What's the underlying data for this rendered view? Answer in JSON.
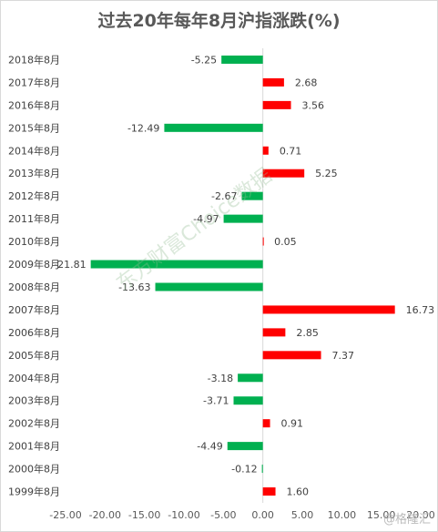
{
  "chart_data": {
    "type": "bar",
    "orientation": "horizontal",
    "title": "过去20年每年8月沪指涨跌(%)",
    "categories": [
      "2018年8月",
      "2017年8月",
      "2016年8月",
      "2015年8月",
      "2014年8月",
      "2013年8月",
      "2012年8月",
      "2011年8月",
      "2010年8月",
      "2009年8月",
      "2008年8月",
      "2007年8月",
      "2006年8月",
      "2005年8月",
      "2004年8月",
      "2003年8月",
      "2002年8月",
      "2001年8月",
      "2000年8月",
      "1999年8月"
    ],
    "values": [
      -5.25,
      2.68,
      3.56,
      -12.49,
      0.71,
      5.25,
      -2.67,
      -4.97,
      0.05,
      -21.81,
      -13.63,
      16.73,
      2.85,
      7.37,
      -3.18,
      -3.71,
      0.91,
      -4.49,
      -0.12,
      1.6
    ],
    "value_labels": [
      "-5.25",
      "2.68",
      "3.56",
      "-12.49",
      "0.71",
      "5.25",
      "-2.67",
      "-4.97",
      "0.05",
      "-21.81",
      "-13.63",
      "16.73",
      "2.85",
      "7.37",
      "-3.18",
      "-3.71",
      "0.91",
      "-4.49",
      "-0.12",
      "1.60"
    ],
    "xlim": [
      -25,
      20
    ],
    "xticks": [
      "-25.00",
      "-20.00",
      "-15.00",
      "-10.00",
      "-5.00",
      "0.00",
      "5.00",
      "10.00",
      "15.00",
      "20.00"
    ],
    "colors": {
      "positive": "#ff0000",
      "negative": "#00b050"
    },
    "grid": false,
    "legend": "none"
  },
  "watermark": "东方财富Choice数据",
  "brand": "@格隆汇"
}
